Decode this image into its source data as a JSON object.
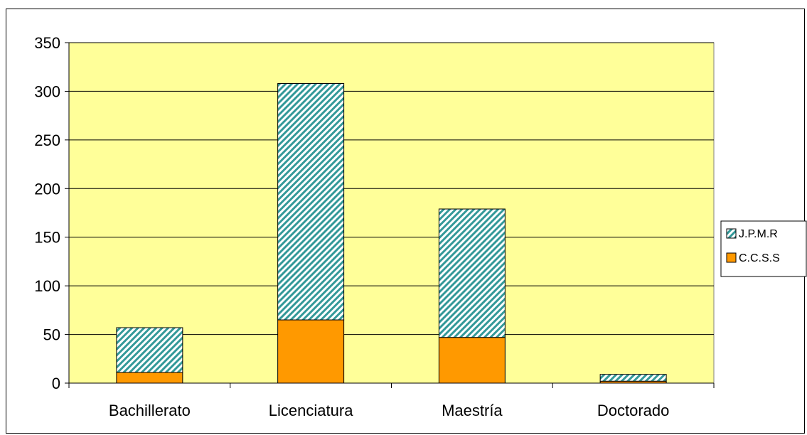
{
  "chart_data": {
    "type": "bar",
    "stacked": true,
    "categories": [
      "Bachillerato",
      "Licenciatura",
      "Maestría",
      "Doctorado"
    ],
    "series": [
      {
        "name": "C.C.S.S",
        "values": [
          11,
          65,
          47,
          2
        ],
        "color": "#ff9900",
        "pattern": "solid"
      },
      {
        "name": "J.P.M.R",
        "values": [
          46,
          243,
          132,
          7
        ],
        "color": "#339999",
        "pattern": "diagonal-hatch"
      }
    ],
    "ylim": [
      0,
      350
    ],
    "yticks": [
      0,
      50,
      100,
      150,
      200,
      250,
      300,
      350
    ],
    "grid": true,
    "plot_background": "#ffff99",
    "legend_position": "right",
    "legend_order": [
      "J.P.M.R",
      "C.C.S.S"
    ],
    "title": "",
    "xlabel": "",
    "ylabel": ""
  }
}
